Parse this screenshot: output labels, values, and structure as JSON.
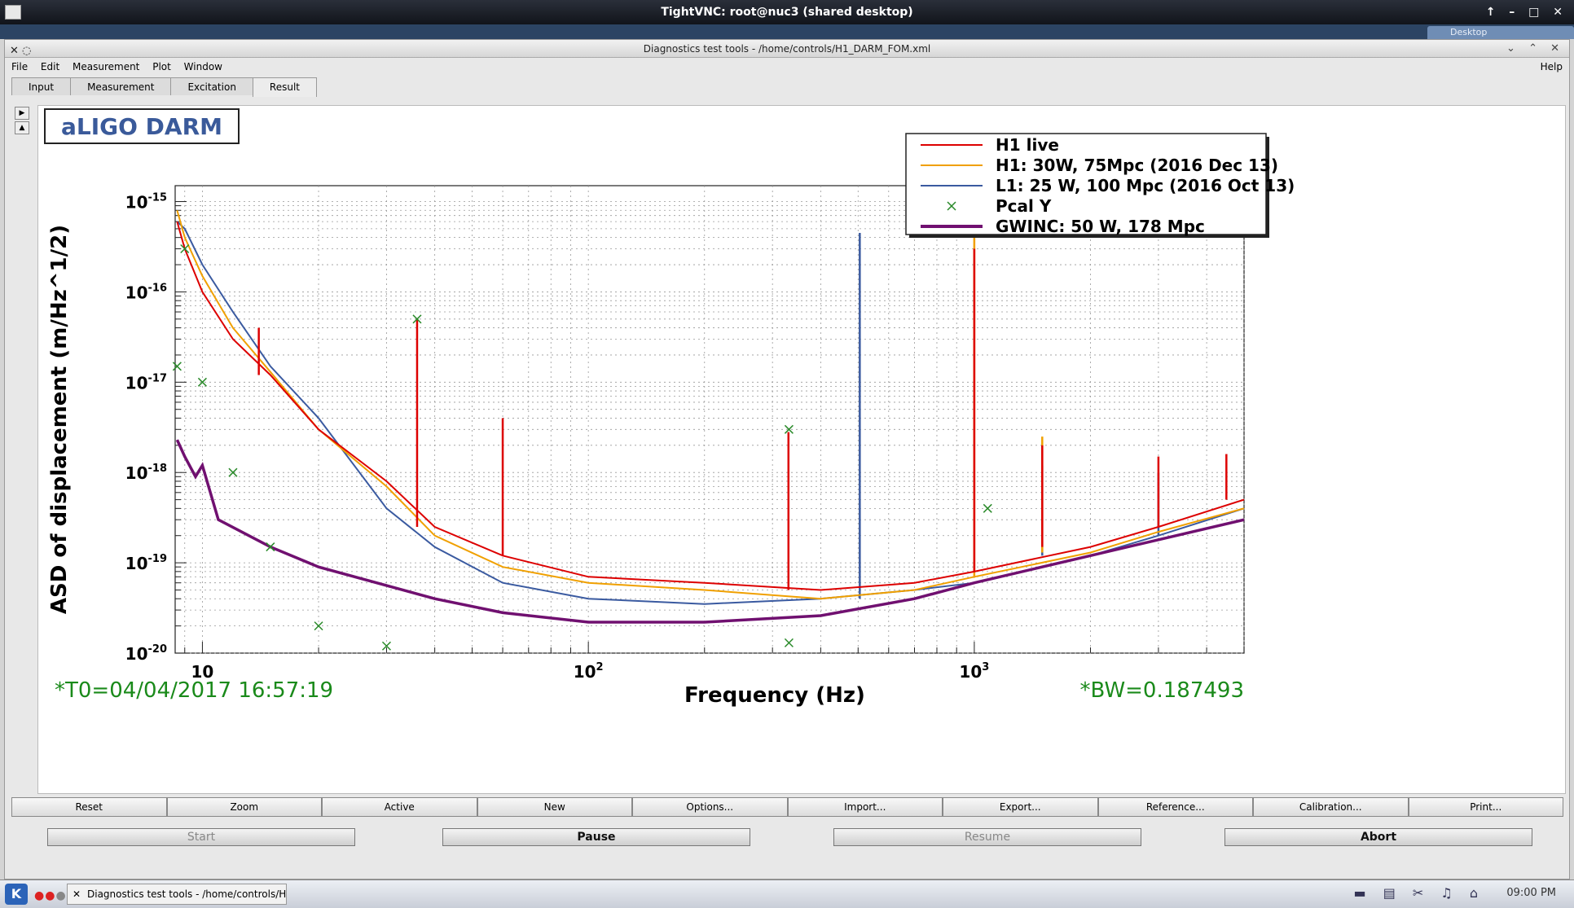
{
  "vnc": {
    "title": "TightVNC: root@nuc3 (shared desktop)",
    "desktop_tab": "Desktop"
  },
  "app": {
    "title": "Diagnostics test tools - /home/controls/H1_DARM_FOM.xml"
  },
  "menu": [
    "File",
    "Edit",
    "Measurement",
    "Plot",
    "Window"
  ],
  "help": "Help",
  "tabs": [
    "Input",
    "Measurement",
    "Excitation",
    "Result"
  ],
  "active_tab": "Result",
  "plot": {
    "title_box": "aLIGO DARM",
    "t0": "*T0=04/04/2017 16:57:19",
    "bw": "*BW=0.187493"
  },
  "buttons": [
    "Reset",
    "Zoom",
    "Active",
    "New",
    "Options...",
    "Import...",
    "Export...",
    "Reference...",
    "Calibration...",
    "Print..."
  ],
  "controls": [
    {
      "label": "Start",
      "enabled": false
    },
    {
      "label": "Pause",
      "enabled": true
    },
    {
      "label": "Resume",
      "enabled": false
    },
    {
      "label": "Abort",
      "enabled": true
    }
  ],
  "taskbar": {
    "item": "Diagnostics test tools - /home/controls/H1_",
    "clock": "09:00 PM"
  },
  "chart_data": {
    "type": "line",
    "xlabel": "Frequency (Hz)",
    "ylabel": "ASD of displacement (m/Hz^1/2)",
    "xscale": "log",
    "yscale": "log",
    "xlim": [
      8.5,
      5000
    ],
    "ylim": [
      1e-20,
      1.5e-15
    ],
    "x_ticks": [
      {
        "base": "10",
        "exp": ""
      },
      {
        "base": "10",
        "exp": "2"
      },
      {
        "base": "10",
        "exp": "3"
      }
    ],
    "y_ticks": [
      {
        "base": "10",
        "exp": "-15"
      },
      {
        "base": "10",
        "exp": "-16"
      },
      {
        "base": "10",
        "exp": "-17"
      },
      {
        "base": "10",
        "exp": "-18"
      },
      {
        "base": "10",
        "exp": "-19"
      },
      {
        "base": "10",
        "exp": "-20"
      }
    ],
    "grid": true,
    "legend_position": "top-right",
    "series": [
      {
        "name": "H1 live",
        "color": "#dd0000",
        "style": "line",
        "points": [
          [
            8.6,
            6e-16
          ],
          [
            9,
            3e-16
          ],
          [
            10,
            1e-16
          ],
          [
            12,
            3e-17
          ],
          [
            15,
            1.2e-17
          ],
          [
            20,
            3e-18
          ],
          [
            30,
            8e-19
          ],
          [
            40,
            2.5e-19
          ],
          [
            60,
            1.2e-19
          ],
          [
            100,
            7e-20
          ],
          [
            200,
            6e-20
          ],
          [
            400,
            5e-20
          ],
          [
            700,
            6e-20
          ],
          [
            1000,
            8e-20
          ],
          [
            2000,
            1.5e-19
          ],
          [
            3000,
            2.5e-19
          ],
          [
            5000,
            5e-19
          ]
        ],
        "peaks": [
          [
            36,
            5e-17
          ],
          [
            60,
            4e-18
          ],
          [
            14,
            4e-17
          ],
          [
            330,
            2.8e-18
          ],
          [
            1000,
            3e-16
          ],
          [
            1500,
            2e-18
          ],
          [
            3000,
            1.5e-18
          ],
          [
            4500,
            1.6e-18
          ]
        ]
      },
      {
        "name": "H1: 30W, 75Mpc (2016 Dec 13)",
        "color": "#f0a000",
        "style": "line",
        "points": [
          [
            8.6,
            8e-16
          ],
          [
            9,
            4e-16
          ],
          [
            10,
            1.5e-16
          ],
          [
            12,
            4e-17
          ],
          [
            15,
            1.3e-17
          ],
          [
            20,
            3e-18
          ],
          [
            30,
            7e-19
          ],
          [
            40,
            2e-19
          ],
          [
            60,
            9e-20
          ],
          [
            100,
            6e-20
          ],
          [
            200,
            5e-20
          ],
          [
            400,
            4e-20
          ],
          [
            700,
            5e-20
          ],
          [
            1000,
            7e-20
          ],
          [
            2000,
            1.3e-19
          ],
          [
            3000,
            2.2e-19
          ],
          [
            5000,
            4e-19
          ]
        ],
        "peaks": [
          [
            1000,
            4.5e-16
          ],
          [
            1500,
            2.5e-18
          ]
        ]
      },
      {
        "name": "L1: 25 W, 100 Mpc (2016 Oct 13)",
        "color": "#3a5aa0",
        "style": "line",
        "points": [
          [
            8.6,
            6e-16
          ],
          [
            9,
            5e-16
          ],
          [
            10,
            2e-16
          ],
          [
            12,
            6e-17
          ],
          [
            15,
            1.5e-17
          ],
          [
            20,
            4e-18
          ],
          [
            30,
            4e-19
          ],
          [
            40,
            1.5e-19
          ],
          [
            60,
            6e-20
          ],
          [
            100,
            4e-20
          ],
          [
            200,
            3.5e-20
          ],
          [
            400,
            4e-20
          ],
          [
            700,
            5e-20
          ],
          [
            1000,
            6e-20
          ],
          [
            2000,
            1.2e-19
          ],
          [
            3000,
            2e-19
          ],
          [
            5000,
            4e-19
          ]
        ],
        "peaks": [
          [
            505,
            4.5e-16
          ],
          [
            1500,
            1.2e-18
          ],
          [
            3000,
            1e-18
          ]
        ]
      },
      {
        "name": "Pcal Y",
        "color": "#2a8a2a",
        "style": "marker",
        "points": [
          [
            8.6,
            1.5e-17
          ],
          [
            9,
            3e-16
          ],
          [
            10,
            1e-17
          ],
          [
            12,
            1e-18
          ],
          [
            15,
            1.5e-19
          ],
          [
            20,
            2e-20
          ],
          [
            30,
            1.2e-20
          ],
          [
            36,
            5e-17
          ],
          [
            331,
            3e-18
          ],
          [
            331,
            1.3e-20
          ],
          [
            1083,
            4e-19
          ]
        ]
      },
      {
        "name": "GWINC: 50 W, 178 Mpc",
        "color": "#701070",
        "style": "line",
        "points": [
          [
            8.6,
            2.3e-18
          ],
          [
            9,
            1.5e-18
          ],
          [
            9.6,
            9e-19
          ],
          [
            10,
            1.2e-18
          ],
          [
            11,
            3e-19
          ],
          [
            15,
            1.5e-19
          ],
          [
            20,
            9e-20
          ],
          [
            40,
            4e-20
          ],
          [
            60,
            2.8e-20
          ],
          [
            100,
            2.2e-20
          ],
          [
            200,
            2.2e-20
          ],
          [
            400,
            2.6e-20
          ],
          [
            700,
            4e-20
          ],
          [
            1000,
            6e-20
          ],
          [
            2000,
            1.2e-19
          ],
          [
            3000,
            1.8e-19
          ],
          [
            5000,
            3e-19
          ]
        ]
      }
    ]
  }
}
